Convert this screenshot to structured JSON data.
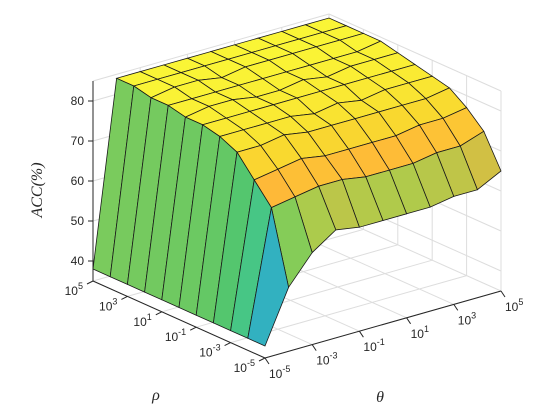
{
  "chart_data": {
    "type": "surface",
    "title": "",
    "xlabel": "ρ",
    "ylabel": "θ",
    "zlabel": "ACC(%)",
    "zlim": [
      35,
      85
    ],
    "grid": true,
    "colormap": [
      "#3e26a8",
      "#2e87f7",
      "#34c5a6",
      "#56c66a",
      "#9ecf4f",
      "#ffb23a",
      "#f9d92f",
      "#faf536"
    ],
    "x_ticks": [
      {
        "base": "10",
        "exp": "5"
      },
      {
        "base": "10",
        "exp": "3"
      },
      {
        "base": "10",
        "exp": "1"
      },
      {
        "base": "10",
        "exp": "-1"
      },
      {
        "base": "10",
        "exp": "-3"
      },
      {
        "base": "10",
        "exp": "-5"
      }
    ],
    "y_ticks": [
      {
        "base": "10",
        "exp": "-5"
      },
      {
        "base": "10",
        "exp": "-3"
      },
      {
        "base": "10",
        "exp": "-1"
      },
      {
        "base": "10",
        "exp": "1"
      },
      {
        "base": "10",
        "exp": "3"
      },
      {
        "base": "10",
        "exp": "5"
      }
    ],
    "z_ticks": [
      "40",
      "50",
      "60",
      "70",
      "80"
    ],
    "x_values_log10": [
      -5,
      -4,
      -3,
      -2,
      -1,
      0,
      1,
      2,
      3,
      4,
      5
    ],
    "y_values_log10": [
      -5,
      -4,
      -3,
      -2,
      -1,
      0,
      1,
      2,
      3,
      4,
      5
    ],
    "z": [
      [
        38,
        38,
        38,
        38,
        38,
        38,
        38,
        38,
        38,
        38,
        38
      ],
      [
        51,
        69,
        74,
        79,
        81,
        82,
        82,
        83,
        83,
        84,
        84
      ],
      [
        58,
        70,
        75,
        79,
        81,
        82,
        83,
        83,
        84,
        84,
        84
      ],
      [
        62,
        71,
        76,
        80,
        81,
        82,
        83,
        83,
        84,
        84,
        84
      ],
      [
        61,
        71,
        75,
        79,
        81,
        82,
        82,
        83,
        83,
        84,
        84
      ],
      [
        61,
        70,
        75,
        79,
        80,
        82,
        82,
        83,
        84,
        84,
        84
      ],
      [
        61,
        70,
        75,
        79,
        81,
        82,
        83,
        83,
        84,
        84,
        84
      ],
      [
        61,
        70,
        75,
        79,
        80,
        82,
        82,
        83,
        84,
        84,
        84
      ],
      [
        62,
        71,
        76,
        79,
        81,
        82,
        83,
        83,
        84,
        84,
        84
      ],
      [
        62,
        71,
        76,
        79,
        81,
        82,
        83,
        83,
        84,
        84,
        84
      ],
      [
        65,
        73,
        77,
        80,
        81,
        82,
        83,
        84,
        84,
        84,
        84
      ]
    ]
  }
}
